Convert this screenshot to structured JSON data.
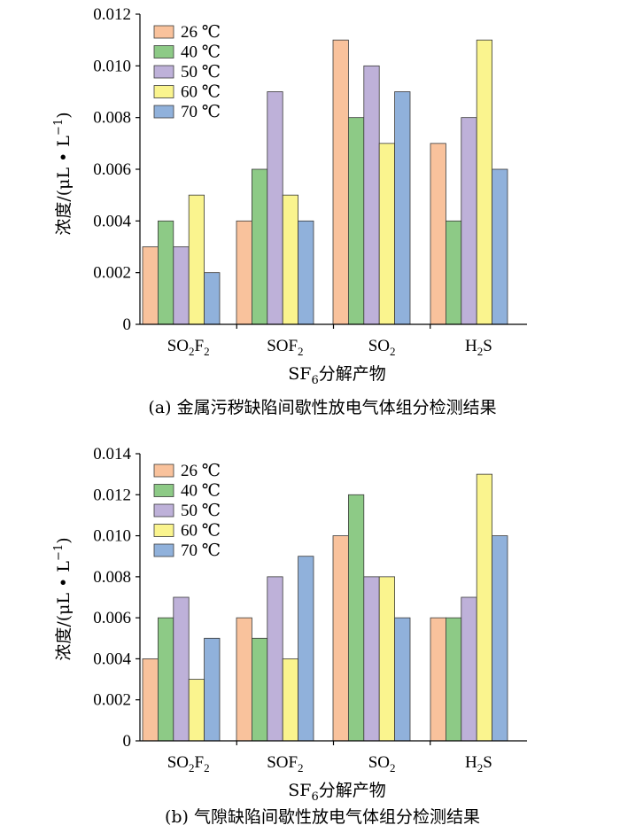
{
  "chart_data": [
    {
      "type": "bar",
      "caption": "(a)  金属污秽缺陷间歇性放电气体组分检测结果",
      "xlabel": "SF<sub>6</sub>分解产物",
      "ylabel": "浓度/(μL • L<sup>−1</sup>)",
      "categories": [
        "SO<sub>2</sub>F<sub>2</sub>",
        "SOF<sub>2</sub>",
        "SO<sub>2</sub>",
        "H<sub>2</sub>S"
      ],
      "ylim": [
        0,
        0.012
      ],
      "yticks": [
        "0",
        "0.002",
        "0.004",
        "0.006",
        "0.008",
        "0.010",
        "0.012"
      ],
      "legend_position": "top-left",
      "grid": false,
      "series": [
        {
          "name": "26 ℃",
          "color": "#F9C29C",
          "values": [
            0.003,
            0.004,
            0.011,
            0.007
          ]
        },
        {
          "name": "40 ℃",
          "color": "#8DCA86",
          "values": [
            0.004,
            0.006,
            0.008,
            0.004
          ]
        },
        {
          "name": "50 ℃",
          "color": "#BEB1D9",
          "values": [
            0.003,
            0.009,
            0.01,
            0.008
          ]
        },
        {
          "name": "60 ℃",
          "color": "#FAF48E",
          "values": [
            0.005,
            0.005,
            0.007,
            0.011
          ]
        },
        {
          "name": "70 ℃",
          "color": "#90B1DB",
          "values": [
            0.002,
            0.004,
            0.009,
            0.006
          ]
        }
      ]
    },
    {
      "type": "bar",
      "caption": "(b)  气隙缺陷间歇性放电气体组分检测结果",
      "xlabel": "SF<sub>6</sub>分解产物",
      "ylabel": "浓度/(μL • L<sup>−1</sup>)",
      "categories": [
        "SO<sub>2</sub>F<sub>2</sub>",
        "SOF<sub>2</sub>",
        "SO<sub>2</sub>",
        "H<sub>2</sub>S"
      ],
      "ylim": [
        0,
        0.014
      ],
      "yticks": [
        "0",
        "0.002",
        "0.004",
        "0.006",
        "0.008",
        "0.010",
        "0.012",
        "0.014"
      ],
      "legend_position": "top-left",
      "grid": false,
      "series": [
        {
          "name": "26 ℃",
          "color": "#F9C29C",
          "values": [
            0.004,
            0.006,
            0.01,
            0.006
          ]
        },
        {
          "name": "40 ℃",
          "color": "#8DCA86",
          "values": [
            0.006,
            0.005,
            0.012,
            0.006
          ]
        },
        {
          "name": "50 ℃",
          "color": "#BEB1D9",
          "values": [
            0.007,
            0.008,
            0.008,
            0.007
          ]
        },
        {
          "name": "60 ℃",
          "color": "#FAF48E",
          "values": [
            0.003,
            0.004,
            0.008,
            0.013
          ]
        },
        {
          "name": "70 ℃",
          "color": "#90B1DB",
          "values": [
            0.005,
            0.009,
            0.006,
            0.01
          ]
        }
      ]
    }
  ]
}
